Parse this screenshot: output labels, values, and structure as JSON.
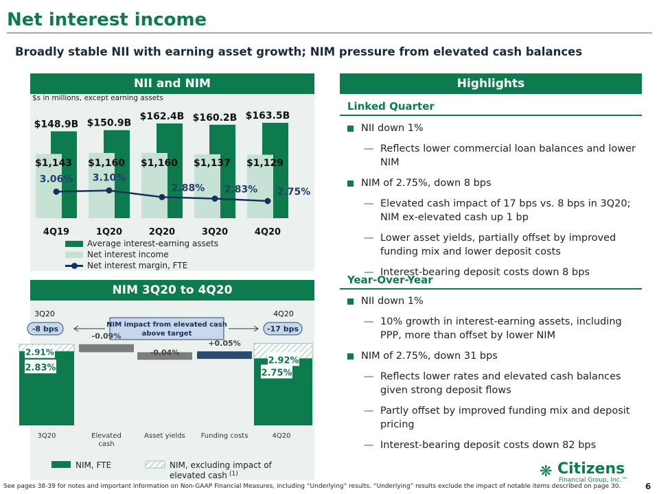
{
  "page": {
    "title": "Net interest income",
    "subtitle": "Broadly stable NII with earning asset growth; NIM pressure from elevated cash balances",
    "page_number": "6",
    "footer": "See pages 38-39 for notes and important information on Non-GAAP Financial Measures, including “Underlying” results. “Underlying” results exclude the impact of notable items described on page 30."
  },
  "colors": {
    "brand_green": "#0d7b4e",
    "assets_bar": "#0d7b4e",
    "nii_bar": "#c6e2d5",
    "nim_line": "#15305b",
    "panel_bg": "#eaf1ee",
    "decline_bar": "#7d7d7d",
    "increase_bar": "#2e4a6f",
    "callout_fill": "#c9d7ea"
  },
  "nii_panel": {
    "header": "NII and NIM",
    "units_note": "$s in millions, except earning assets",
    "legend": {
      "assets": "Average interest-earning assets",
      "nii": "Net interest income",
      "nim": "Net interest margin, FTE"
    }
  },
  "nim_panel": {
    "header": "NIM 3Q20 to 4Q20",
    "callout": "NIM impact from elevated cash above target",
    "left_period": "3Q20",
    "left_value": "-8 bps",
    "right_period": "4Q20",
    "right_value": "-17 bps",
    "legend": {
      "nim_fte": "NIM, FTE",
      "nim_excl": "NIM, excluding impact of elevated cash",
      "nim_excl_note": "(1)"
    }
  },
  "chart_data": [
    {
      "type": "bar",
      "categories": [
        "4Q19",
        "1Q20",
        "2Q20",
        "3Q20",
        "4Q20"
      ],
      "series": [
        {
          "name": "Average interest-earning assets",
          "values": [
            148.9,
            150.9,
            162.4,
            160.2,
            163.5
          ],
          "labels": [
            "$148.9B",
            "$150.9B",
            "$162.4B",
            "$160.2B",
            "$163.5B"
          ]
        },
        {
          "name": "Net interest income",
          "values": [
            1143,
            1160,
            1160,
            1137,
            1129
          ],
          "labels": [
            "$1,143",
            "$1,160",
            "$1,160",
            "$1,137",
            "$1,129"
          ]
        },
        {
          "name": "Net interest margin, FTE",
          "type": "line",
          "values": [
            3.06,
            3.1,
            2.88,
            2.83,
            2.75
          ],
          "labels": [
            "3.06%",
            "3.10%",
            "2.88%",
            "2.83%",
            "2.75%"
          ]
        }
      ],
      "title": "",
      "xlabel": "",
      "ylabel": ""
    },
    {
      "type": "bar",
      "subtype": "waterfall",
      "categories": [
        "3Q20",
        "Elevated cash",
        "Asset yields",
        "Funding costs",
        "4Q20"
      ],
      "nim_fte": {
        "start": 2.83,
        "end": 2.75,
        "start_label": "2.83%",
        "end_label": "2.75%"
      },
      "nim_excl_elevated_cash": {
        "start": 2.91,
        "end": 2.92,
        "start_label": "2.91%",
        "end_label": "2.92%"
      },
      "changes": [
        {
          "category": "Elevated cash",
          "value": -0.09,
          "label": "-0.09%"
        },
        {
          "category": "Asset yields",
          "value": -0.04,
          "label": "-0.04%"
        },
        {
          "category": "Funding costs",
          "value": 0.05,
          "label": "+0.05%"
        }
      ],
      "title": "",
      "xlabel": "",
      "ylabel": ""
    }
  ],
  "highlights": {
    "header": "Highlights",
    "linked_quarter": {
      "title": "Linked Quarter",
      "nii": "NII down 1%",
      "nii_sub1": "Reflects lower commercial loan balances and lower NIM",
      "nim": "NIM of 2.75%, down 8 bps",
      "nim_sub1": "Elevated cash impact of 17 bps vs. 8 bps in 3Q20; NIM ex-elevated cash up 1 bp",
      "nim_sub2": "Lower asset yields, partially offset by improved funding mix and lower deposit costs",
      "nim_sub3": "Interest-bearing deposit costs down 8 bps"
    },
    "year_over_year": {
      "title": "Year-Over-Year",
      "nii": "NII down 1%",
      "nii_sub1": "10% growth in interest-earning assets, including PPP, more than offset by lower NIM",
      "nim": "NIM of 2.75%, down 31 bps",
      "nim_sub1": "Reflects lower rates and elevated cash balances given strong deposit flows",
      "nim_sub2": "Partly offset by improved funding mix and deposit pricing",
      "nim_sub3": "Interest-bearing deposit costs down 82 bps"
    }
  },
  "logo": {
    "name": "Citizens",
    "sub": "Financial Group, Inc.™",
    "icon": "citizens-logo-icon"
  }
}
